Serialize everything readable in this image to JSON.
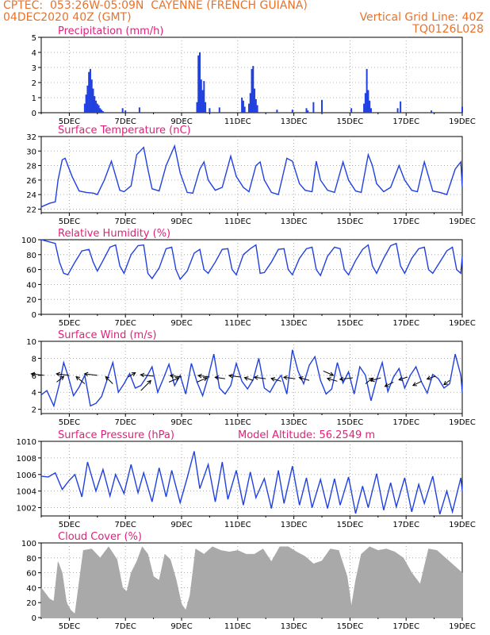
{
  "header": {
    "line1": "CPTEC:  053:26W-05:09N  CAYENNE (FRENCH GUIANA)",
    "line2_left": "04DEC2020 40Z (GMT)",
    "line2_right": "Vertical Grid Line: 40Z",
    "line3_right": "TQ0126L028"
  },
  "colors": {
    "header": "#e9722b",
    "title": "#e0207a",
    "line": "#2040e0",
    "bar": "#2040e0",
    "cloud": "#a9a9a9",
    "arrow": "#000000",
    "grid": "#9a9a9a"
  },
  "x_axis": {
    "range_days": [
      4.0,
      19.0
    ],
    "tick_labels": [
      "5DEC",
      "7DEC",
      "9DEC",
      "11DEC",
      "13DEC",
      "15DEC",
      "17DEC",
      "19DEC"
    ],
    "tick_days": [
      5,
      7,
      9,
      11,
      13,
      15,
      17,
      19
    ]
  },
  "chart_data": [
    {
      "id": "precip",
      "type": "bar",
      "title": "Precipitation (mm/h)",
      "ylim": [
        0,
        5
      ],
      "yticks": [
        0,
        1,
        2,
        3,
        4,
        5
      ],
      "grid": true,
      "x": [
        5.55,
        5.6,
        5.65,
        5.7,
        5.75,
        5.8,
        5.85,
        5.9,
        5.95,
        6.0,
        6.05,
        6.1,
        6.15,
        6.2,
        6.9,
        7.0,
        7.5,
        9.55,
        9.6,
        9.65,
        9.7,
        9.75,
        9.8,
        9.85,
        10.0,
        10.35,
        11.15,
        11.2,
        11.25,
        11.4,
        11.45,
        11.5,
        11.55,
        11.6,
        11.65,
        11.7,
        12.4,
        12.95,
        13.45,
        13.5,
        13.7,
        14.0,
        15.05,
        15.5,
        15.55,
        15.6,
        15.65,
        15.7,
        15.75,
        16.7,
        16.8,
        17.9,
        19.0
      ],
      "values": [
        0.6,
        1.2,
        1.8,
        2.7,
        2.9,
        2.2,
        1.6,
        1.1,
        0.8,
        0.6,
        0.5,
        0.3,
        0.2,
        0.1,
        0.3,
        0.15,
        0.35,
        0.7,
        3.8,
        4.0,
        2.2,
        1.5,
        2.1,
        0.7,
        0.3,
        0.35,
        1.0,
        0.8,
        0.4,
        0.6,
        1.3,
        2.9,
        3.1,
        1.6,
        0.9,
        0.5,
        0.2,
        0.2,
        0.3,
        0.15,
        0.7,
        0.85,
        0.3,
        0.6,
        1.3,
        2.9,
        1.5,
        0.8,
        0.3,
        0.3,
        0.75,
        0.15,
        0.4
      ]
    },
    {
      "id": "temp",
      "type": "line",
      "title": "Surface Temperature (nC)",
      "ylim": [
        21.5,
        32
      ],
      "yticks": [
        22,
        24,
        26,
        28,
        30,
        32
      ],
      "grid": true,
      "x": [
        4.0,
        4.3,
        4.5,
        4.6,
        4.75,
        4.85,
        5.1,
        5.35,
        5.6,
        5.85,
        6.0,
        6.25,
        6.5,
        6.8,
        6.95,
        7.2,
        7.4,
        7.65,
        7.8,
        7.95,
        8.2,
        8.45,
        8.75,
        8.95,
        9.2,
        9.4,
        9.65,
        9.8,
        9.95,
        10.2,
        10.45,
        10.75,
        10.95,
        11.2,
        11.4,
        11.65,
        11.8,
        11.95,
        12.2,
        12.45,
        12.75,
        12.95,
        13.2,
        13.4,
        13.65,
        13.8,
        13.95,
        14.2,
        14.45,
        14.75,
        14.95,
        15.2,
        15.4,
        15.65,
        15.8,
        15.95,
        16.2,
        16.45,
        16.75,
        16.95,
        17.2,
        17.4,
        17.65,
        17.8,
        17.95,
        18.2,
        18.45,
        18.75,
        18.95,
        19.0
      ],
      "series": [
        {
          "values": [
            22.3,
            22.8,
            23.0,
            26.0,
            28.8,
            29.0,
            26.5,
            24.5,
            24.3,
            24.2,
            24.0,
            26.0,
            28.6,
            24.6,
            24.4,
            25.2,
            29.5,
            30.5,
            27.5,
            24.8,
            24.5,
            28.0,
            30.7,
            27.0,
            24.3,
            24.2,
            27.5,
            28.5,
            26.0,
            24.6,
            25.0,
            29.3,
            26.5,
            25.0,
            24.4,
            28.0,
            28.5,
            26.0,
            24.3,
            24.0,
            29.0,
            28.6,
            25.5,
            24.6,
            24.4,
            28.6,
            26.0,
            24.6,
            24.3,
            28.5,
            26.0,
            24.5,
            24.3,
            29.5,
            28.0,
            25.5,
            24.4,
            25.0,
            28.0,
            26.0,
            24.6,
            24.4,
            28.5,
            26.5,
            24.5,
            24.3,
            24.0,
            27.5,
            28.5,
            25.0
          ]
        }
      ]
    },
    {
      "id": "rh",
      "type": "line",
      "title": "Relative Humidity (%)",
      "ylim": [
        0,
        100
      ],
      "yticks": [
        0,
        20,
        40,
        60,
        80,
        100
      ],
      "grid": true,
      "x": [
        4.0,
        4.3,
        4.5,
        4.65,
        4.8,
        4.95,
        5.2,
        5.45,
        5.7,
        5.85,
        6.0,
        6.2,
        6.45,
        6.65,
        6.8,
        6.95,
        7.2,
        7.45,
        7.65,
        7.8,
        7.95,
        8.2,
        8.45,
        8.65,
        8.8,
        8.95,
        9.2,
        9.45,
        9.65,
        9.8,
        9.95,
        10.2,
        10.45,
        10.65,
        10.8,
        10.95,
        11.2,
        11.45,
        11.65,
        11.8,
        11.95,
        12.2,
        12.45,
        12.65,
        12.8,
        12.95,
        13.2,
        13.45,
        13.65,
        13.8,
        13.95,
        14.2,
        14.45,
        14.65,
        14.8,
        14.95,
        15.2,
        15.45,
        15.65,
        15.8,
        15.95,
        16.2,
        16.45,
        16.65,
        16.8,
        16.95,
        17.2,
        17.45,
        17.65,
        17.8,
        17.95,
        18.2,
        18.45,
        18.65,
        18.8,
        18.95,
        19.0
      ],
      "series": [
        {
          "values": [
            100,
            97,
            95,
            70,
            55,
            53,
            70,
            85,
            87,
            70,
            58,
            72,
            90,
            93,
            65,
            55,
            80,
            92,
            93,
            55,
            48,
            62,
            88,
            90,
            60,
            47,
            58,
            82,
            87,
            60,
            55,
            70,
            87,
            88,
            60,
            53,
            80,
            88,
            93,
            55,
            56,
            70,
            87,
            88,
            60,
            53,
            75,
            88,
            90,
            60,
            52,
            78,
            90,
            88,
            60,
            53,
            72,
            87,
            93,
            65,
            55,
            75,
            92,
            95,
            65,
            55,
            75,
            88,
            90,
            60,
            55,
            70,
            85,
            90,
            60,
            55,
            78
          ]
        }
      ]
    },
    {
      "id": "wind",
      "type": "line",
      "title": "Surface Wind (m/s)",
      "ylim": [
        1.5,
        10
      ],
      "yticks": [
        2,
        4,
        6,
        8,
        10
      ],
      "grid": true,
      "x": [
        4.0,
        4.2,
        4.45,
        4.65,
        4.8,
        4.95,
        5.15,
        5.35,
        5.55,
        5.75,
        5.95,
        6.15,
        6.35,
        6.55,
        6.75,
        6.95,
        7.15,
        7.35,
        7.55,
        7.75,
        7.95,
        8.15,
        8.35,
        8.55,
        8.75,
        8.95,
        9.15,
        9.35,
        9.55,
        9.75,
        9.95,
        10.15,
        10.35,
        10.55,
        10.75,
        10.95,
        11.15,
        11.35,
        11.55,
        11.75,
        11.95,
        12.15,
        12.35,
        12.55,
        12.75,
        12.95,
        13.15,
        13.35,
        13.55,
        13.75,
        13.95,
        14.15,
        14.35,
        14.55,
        14.75,
        14.95,
        15.15,
        15.35,
        15.55,
        15.75,
        15.95,
        16.15,
        16.35,
        16.55,
        16.75,
        16.95,
        17.15,
        17.35,
        17.55,
        17.75,
        17.95,
        18.15,
        18.35,
        18.55,
        18.75,
        18.95,
        19.0
      ],
      "series": [
        {
          "values": [
            3.7,
            4.2,
            2.4,
            5.0,
            7.5,
            6.0,
            3.6,
            4.6,
            6.0,
            2.4,
            2.7,
            3.5,
            5.5,
            7.5,
            4.0,
            5.0,
            6.2,
            4.5,
            4.8,
            5.8,
            7.0,
            4.0,
            5.6,
            7.3,
            4.8,
            6.0,
            3.8,
            7.4,
            5.2,
            3.6,
            5.8,
            8.5,
            4.5,
            3.8,
            4.8,
            7.4,
            5.3,
            4.4,
            5.5,
            8.0,
            4.5,
            4.0,
            5.2,
            6.0,
            3.8,
            9.0,
            6.5,
            5.0,
            7.2,
            8.2,
            5.4,
            3.8,
            4.4,
            7.5,
            5.1,
            6.4,
            3.8,
            7.0,
            6.0,
            3.0,
            5.5,
            7.5,
            4.1,
            5.8,
            6.8,
            4.5,
            6.0,
            7.0,
            5.2,
            3.9,
            6.1,
            5.6,
            4.5,
            5.0,
            8.5,
            6.0,
            4.0
          ]
        }
      ],
      "wind_arrows": {
        "x": [
          4.1,
          4.55,
          5.0,
          5.55,
          6.0,
          6.55,
          7.1,
          7.55,
          8.0,
          8.55,
          9.0,
          9.55,
          10.0,
          10.55,
          11.1,
          11.55,
          12.0,
          12.55,
          13.05,
          13.55,
          14.05,
          14.55,
          15.1,
          15.55,
          16.1,
          16.55,
          17.05,
          17.55,
          18.05,
          18.55
        ],
        "y": [
          6.0,
          5.2,
          6.0,
          5.0,
          6.0,
          5.0,
          5.8,
          4.2,
          5.9,
          5.2,
          5.8,
          5.2,
          5.8,
          5.6,
          5.8,
          5.4,
          5.6,
          5.3,
          5.6,
          5.4,
          6.5,
          5.3,
          5.7,
          5.0,
          5.7,
          5.2,
          5.8,
          5.3,
          5.9,
          5.4
        ],
        "u": [
          -0.9,
          0.5,
          -0.9,
          -0.6,
          -0.9,
          -0.5,
          0.5,
          0.7,
          -0.9,
          0.7,
          -0.8,
          0.7,
          -0.8,
          -0.7,
          -0.8,
          -0.6,
          -0.8,
          -0.7,
          -0.8,
          -0.7,
          0.7,
          -0.7,
          -0.9,
          0.5,
          -0.7,
          -0.6,
          -0.6,
          -0.6,
          -0.6,
          -0.4
        ],
        "v": [
          0.1,
          0.4,
          0.1,
          0.5,
          0.1,
          0.5,
          0.3,
          0.7,
          0.1,
          0.3,
          0.1,
          0.3,
          0.1,
          0.1,
          0.1,
          0.2,
          0.1,
          0.2,
          0.1,
          0.2,
          -0.3,
          0.2,
          -0.1,
          0.4,
          -0.2,
          -0.3,
          -0.2,
          -0.3,
          -0.2,
          -0.3
        ]
      }
    },
    {
      "id": "pressure",
      "type": "line",
      "title": "Surface Pressure (hPa)",
      "annotation": "Model Altitude: 56.2549 m",
      "ylim": [
        1001,
        1010
      ],
      "yticks": [
        1002,
        1004,
        1006,
        1008,
        1010
      ],
      "grid": true,
      "x": [
        4.0,
        4.25,
        4.5,
        4.75,
        5.0,
        5.2,
        5.45,
        5.65,
        5.95,
        6.2,
        6.45,
        6.65,
        6.95,
        7.2,
        7.45,
        7.65,
        7.95,
        8.2,
        8.45,
        8.65,
        8.95,
        9.2,
        9.45,
        9.65,
        9.95,
        10.2,
        10.45,
        10.65,
        10.95,
        11.2,
        11.45,
        11.65,
        11.95,
        12.2,
        12.45,
        12.65,
        12.95,
        13.2,
        13.45,
        13.65,
        13.95,
        14.2,
        14.45,
        14.65,
        14.95,
        15.2,
        15.45,
        15.65,
        15.95,
        16.2,
        16.45,
        16.65,
        16.95,
        17.2,
        17.45,
        17.65,
        17.95,
        18.2,
        18.45,
        18.65,
        18.95,
        19.0
      ],
      "series": [
        {
          "values": [
            1005.8,
            1005.7,
            1006.2,
            1004.2,
            1005.3,
            1006.0,
            1003.3,
            1007.5,
            1004.0,
            1006.6,
            1003.4,
            1006.0,
            1003.7,
            1007.2,
            1003.8,
            1006.2,
            1002.7,
            1006.8,
            1003.3,
            1006.5,
            1002.6,
            1005.6,
            1008.8,
            1004.3,
            1007.2,
            1002.7,
            1007.5,
            1003.0,
            1006.5,
            1002.3,
            1006.3,
            1003.2,
            1005.5,
            1001.9,
            1006.5,
            1002.5,
            1007.0,
            1002.3,
            1005.6,
            1002.0,
            1005.4,
            1001.9,
            1005.5,
            1002.3,
            1005.7,
            1001.3,
            1004.6,
            1002.0,
            1006.1,
            1001.7,
            1005.0,
            1002.1,
            1005.6,
            1001.5,
            1004.8,
            1002.5,
            1005.8,
            1001.2,
            1004.0,
            1001.5,
            1005.6,
            1004.0
          ]
        }
      ]
    },
    {
      "id": "cloud",
      "type": "area",
      "title": "Cloud Cover (%)",
      "ylim": [
        0,
        100
      ],
      "yticks": [
        0,
        20,
        40,
        60,
        80,
        100
      ],
      "grid": true,
      "x": [
        4.0,
        4.3,
        4.45,
        4.6,
        4.75,
        4.9,
        5.05,
        5.2,
        5.5,
        5.8,
        6.1,
        6.4,
        6.7,
        6.9,
        7.05,
        7.2,
        7.4,
        7.6,
        7.8,
        8.0,
        8.2,
        8.4,
        8.6,
        8.8,
        9.0,
        9.15,
        9.3,
        9.5,
        9.8,
        10.1,
        10.4,
        10.7,
        11.0,
        11.3,
        11.6,
        11.9,
        12.2,
        12.5,
        12.8,
        13.1,
        13.4,
        13.7,
        14.0,
        14.3,
        14.6,
        14.9,
        15.05,
        15.2,
        15.4,
        15.7,
        16.0,
        16.3,
        16.6,
        16.9,
        17.2,
        17.5,
        17.8,
        18.1,
        18.4,
        18.7,
        19.0
      ],
      "values": [
        40,
        25,
        22,
        75,
        60,
        20,
        10,
        5,
        90,
        92,
        80,
        95,
        78,
        40,
        35,
        60,
        75,
        95,
        85,
        55,
        50,
        85,
        78,
        52,
        18,
        10,
        30,
        92,
        85,
        95,
        90,
        88,
        90,
        85,
        85,
        92,
        75,
        95,
        95,
        88,
        82,
        72,
        76,
        92,
        90,
        55,
        15,
        50,
        85,
        95,
        90,
        92,
        88,
        80,
        60,
        45,
        92,
        90,
        80,
        70,
        60
      ]
    }
  ]
}
